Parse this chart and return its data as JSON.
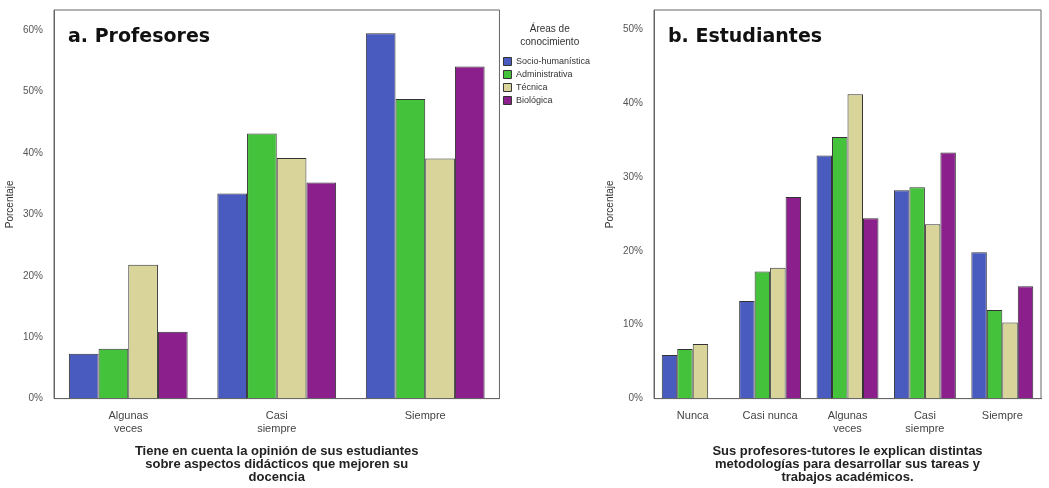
{
  "chart_data": [
    {
      "type": "bar",
      "title": "a. Profesores",
      "xlabel": "Tiene en cuenta la opinión de sus estudiantes sobre aspectos didácticos que mejoren su docencia",
      "ylabel": "Porcentaje",
      "legend_title": "Áreas de conocimiento",
      "legend": "right",
      "grid": false,
      "categories": [
        "Algunas veces",
        "Casi siempre",
        "Siempre"
      ],
      "series": [
        {
          "name": "Socio-humanística",
          "color": "#4a5bbf",
          "values": [
            7.3,
            33.4,
            59.5
          ]
        },
        {
          "name": "Administrativa",
          "color": "#45c23b",
          "values": [
            8.1,
            43.2,
            48.8
          ]
        },
        {
          "name": "Técnica",
          "color": "#d8d49a",
          "values": [
            21.8,
            39.2,
            39.1
          ]
        },
        {
          "name": "Biológica",
          "color": "#8b1f8b",
          "values": [
            10.9,
            35.2,
            54.1
          ]
        }
      ],
      "ylim": [
        0,
        63.3
      ],
      "yticks": [
        {
          "value": 0,
          "label": "0%"
        },
        {
          "value": 10,
          "label": "10%"
        },
        {
          "value": 20,
          "label": "20%"
        },
        {
          "value": 30,
          "label": "30%"
        },
        {
          "value": 40,
          "label": "40%"
        },
        {
          "value": 50,
          "label": "50%"
        },
        {
          "value": 60,
          "label": "60%"
        }
      ]
    },
    {
      "type": "bar",
      "title": "b. Estudiantes",
      "xlabel": "Sus profesores-tutores le explican distintas metodologías para desarrollar sus tareas y trabajos académicos.",
      "ylabel": "Porcentaje",
      "legend": false,
      "grid": false,
      "categories": [
        "Nunca",
        "Casi nunca",
        "Algunas veces",
        "Casi siempre",
        "Siempre"
      ],
      "series": [
        {
          "color": "#4a5bbf",
          "values": [
            5.9,
            13.2,
            32.9,
            28.2,
            19.8
          ]
        },
        {
          "color": "#45c23b",
          "values": [
            6.7,
            17.2,
            35.4,
            28.6,
            12.0
          ]
        },
        {
          "color": "#d8d49a",
          "values": [
            7.4,
            17.7,
            41.2,
            23.6,
            10.3
          ]
        },
        {
          "color": "#8b1f8b",
          "values": [
            0,
            27.3,
            24.4,
            33.3,
            15.2
          ]
        }
      ],
      "ylim": [
        0,
        52.6
      ],
      "yticks": [
        {
          "value": 0,
          "label": "0%"
        },
        {
          "value": 10,
          "label": "10%"
        },
        {
          "value": 20,
          "label": "20%"
        },
        {
          "value": 30,
          "label": "30%"
        },
        {
          "value": 40,
          "label": "40%"
        },
        {
          "value": 50,
          "label": "50%"
        }
      ]
    }
  ]
}
